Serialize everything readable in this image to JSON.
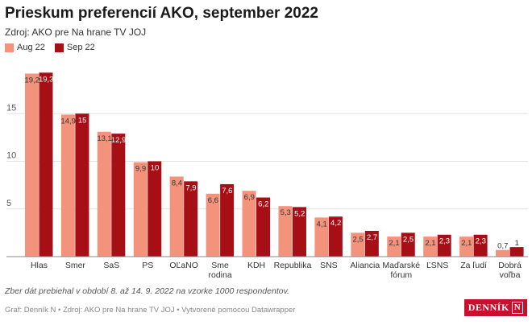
{
  "title": "Prieskum preferencií AKO, september 2022",
  "subtitle": "Zdroj: AKO pre Na hrane TV JOJ",
  "note": "Zber dát prebiehal v období 8. až 14. 9. 2022 na vzorke 1000 respondentov.",
  "credits": "Graf: Denník N • Zdroj: AKO pre Na hrane TV JOJ • Vytvorené pomocou Datawrapper",
  "logo": {
    "text": "DENNÍK",
    "mark": "N"
  },
  "colors": {
    "aug": "#f4937b",
    "sep": "#a50f15",
    "grid": "#e2e2e2",
    "axis": "#888888",
    "label_dark": "#333333",
    "label_light": "#ffffff"
  },
  "chart_data": {
    "type": "bar",
    "categories": [
      [
        "Hlas"
      ],
      [
        "Smer"
      ],
      [
        "SaS"
      ],
      [
        "PS"
      ],
      [
        "OĽaNO"
      ],
      [
        "Sme",
        "rodina"
      ],
      [
        "KDH"
      ],
      [
        "Republika"
      ],
      [
        "SNS"
      ],
      [
        "Aliancia"
      ],
      [
        "Maďarské",
        "fórum"
      ],
      [
        "ĽSNS"
      ],
      [
        "Za ľudí"
      ],
      [
        "Dobrá",
        "voľba"
      ]
    ],
    "series": [
      {
        "name": "Aug 22",
        "values": [
          19.2,
          14.9,
          13.1,
          9.9,
          8.4,
          6.6,
          6.9,
          5.3,
          4.1,
          2.5,
          2.1,
          2.1,
          2.1,
          0.7
        ]
      },
      {
        "name": "Sep 22",
        "values": [
          19.3,
          15,
          12.9,
          10,
          7.9,
          7.6,
          6.2,
          5.2,
          4.2,
          2.7,
          2.5,
          2.3,
          2.3,
          1
        ]
      }
    ],
    "yticks": [
      5,
      10,
      15
    ],
    "ylim": [
      0,
      20
    ],
    "grid": true,
    "legend": "top-left",
    "decimal_separator": ","
  }
}
